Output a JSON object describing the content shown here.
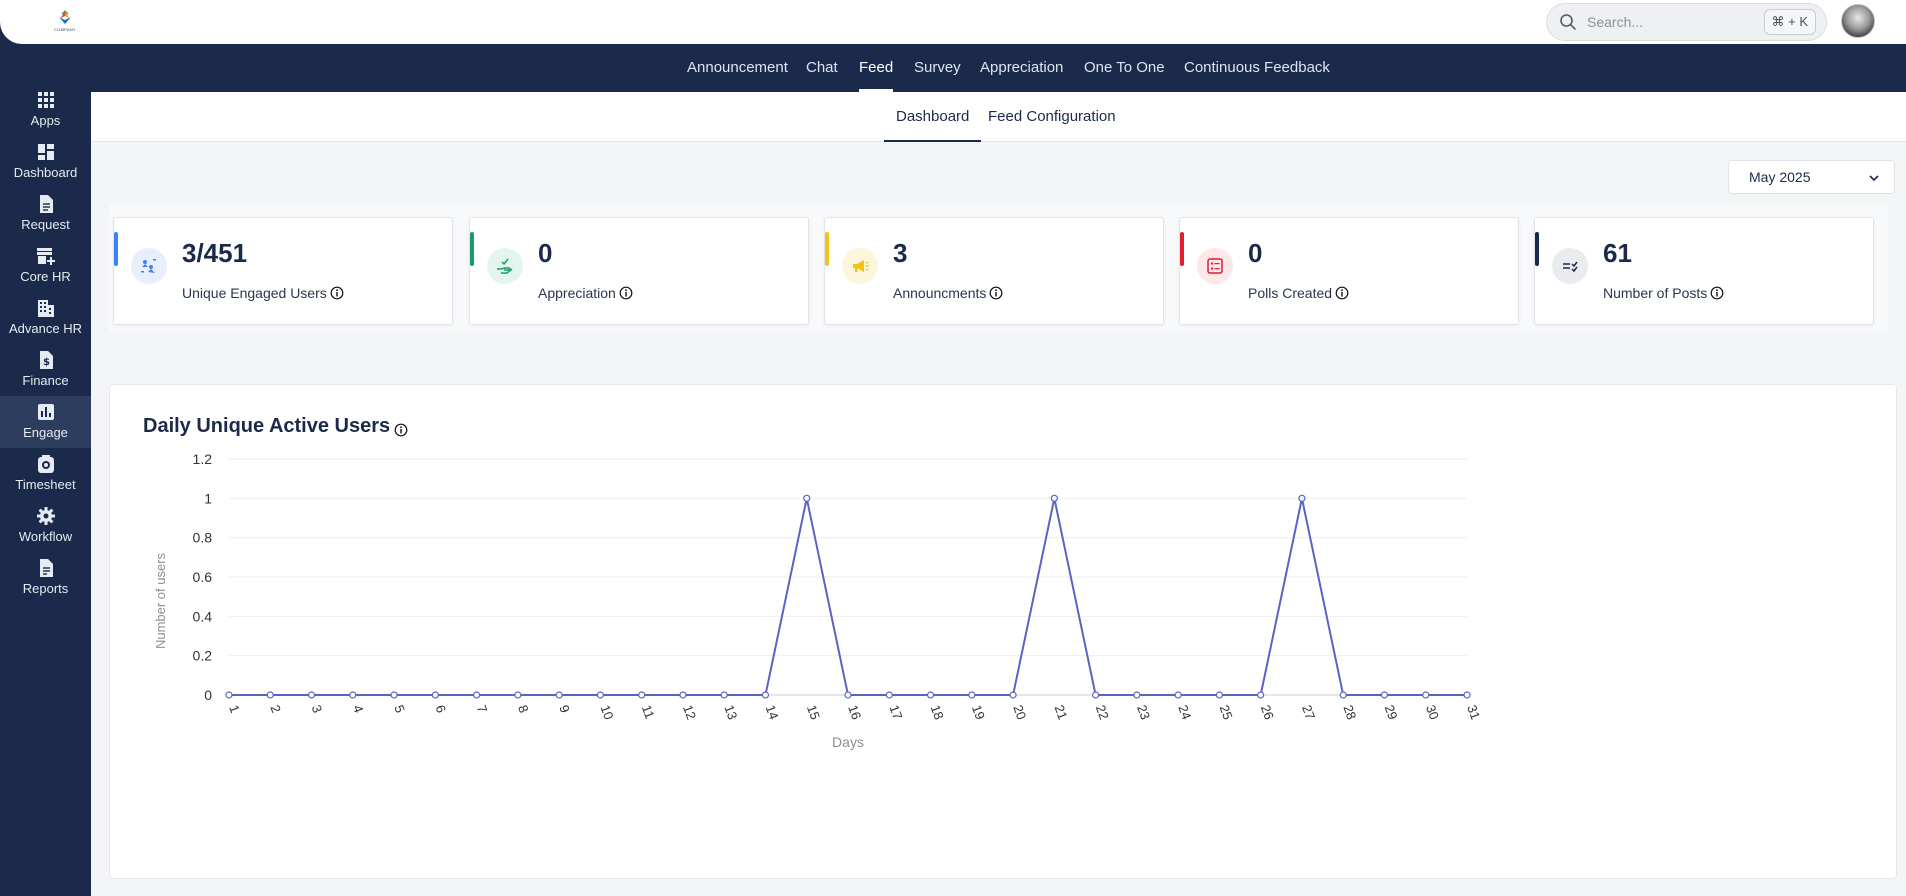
{
  "header": {
    "logo_text": "COMPANY",
    "search_placeholder": "Search...",
    "search_shortcut": "⌘ + K"
  },
  "modules": [
    {
      "label": "Announcement",
      "active": false
    },
    {
      "label": "Chat",
      "active": false
    },
    {
      "label": "Feed",
      "active": true
    },
    {
      "label": "Survey",
      "active": false
    },
    {
      "label": "Appreciation",
      "active": false
    },
    {
      "label": "One To One",
      "active": false
    },
    {
      "label": "Continuous Feedback",
      "active": false
    }
  ],
  "sidebar": {
    "items": [
      {
        "label": "Apps",
        "icon": "apps-grid-icon",
        "active": false
      },
      {
        "label": "Dashboard",
        "icon": "dashboard-icon",
        "active": false
      },
      {
        "label": "Request",
        "icon": "document-icon",
        "active": false
      },
      {
        "label": "Core HR",
        "icon": "store-icon",
        "active": false
      },
      {
        "label": "Advance HR",
        "icon": "building-icon",
        "active": false
      },
      {
        "label": "Finance",
        "icon": "finance-icon",
        "active": false
      },
      {
        "label": "Engage",
        "icon": "bar-chart-icon",
        "active": true
      },
      {
        "label": "Timesheet",
        "icon": "timesheet-icon",
        "active": false
      },
      {
        "label": "Workflow",
        "icon": "gear-icon",
        "active": false
      },
      {
        "label": "Reports",
        "icon": "report-icon",
        "active": false
      }
    ]
  },
  "subtabs": [
    {
      "label": "Dashboard",
      "active": true
    },
    {
      "label": "Feed Configuration",
      "active": false
    }
  ],
  "filter": {
    "month": "May 2025"
  },
  "stats": [
    {
      "value": "3/451",
      "label": "Unique Engaged Users",
      "accent": "#3b82f6",
      "icon_bg": "#e8effc",
      "icon": "engaged-users-icon"
    },
    {
      "value": "0",
      "label": "Appreciation",
      "accent": "#1a9b6c",
      "icon_bg": "#e3f6ee",
      "icon": "appreciation-hand-icon"
    },
    {
      "value": "3",
      "label": "Announcments",
      "accent": "#f2c418",
      "icon_bg": "#fdf6dc",
      "icon": "megaphone-icon"
    },
    {
      "value": "0",
      "label": "Polls Created",
      "accent": "#e11d2e",
      "icon_bg": "#fde7e8",
      "icon": "poll-icon"
    },
    {
      "value": "61",
      "label": "Number of Posts",
      "accent": "#1b2a4a",
      "icon_bg": "#e9ebef",
      "icon": "posts-list-icon"
    }
  ],
  "chart_data": {
    "type": "line",
    "title": "Daily Unique Active Users",
    "xlabel": "Days",
    "ylabel": "Number of users",
    "x": [
      1,
      2,
      3,
      4,
      5,
      6,
      7,
      8,
      9,
      10,
      11,
      12,
      13,
      14,
      15,
      16,
      17,
      18,
      19,
      20,
      21,
      22,
      23,
      24,
      25,
      26,
      27,
      28,
      29,
      30,
      31
    ],
    "series": [
      {
        "values": [
          0,
          0,
          0,
          0,
          0,
          0,
          0,
          0,
          0,
          0,
          0,
          0,
          0,
          0,
          1,
          0,
          0,
          0,
          0,
          0,
          1,
          0,
          0,
          0,
          0,
          0,
          1,
          0,
          0,
          0,
          0
        ]
      }
    ],
    "ylim": [
      0,
      1.2
    ],
    "yticks": [
      "0",
      "0.2",
      "0.4",
      "0.6",
      "0.8",
      "1",
      "1.2"
    ],
    "grid": true,
    "line_color": "#5b63c0"
  }
}
